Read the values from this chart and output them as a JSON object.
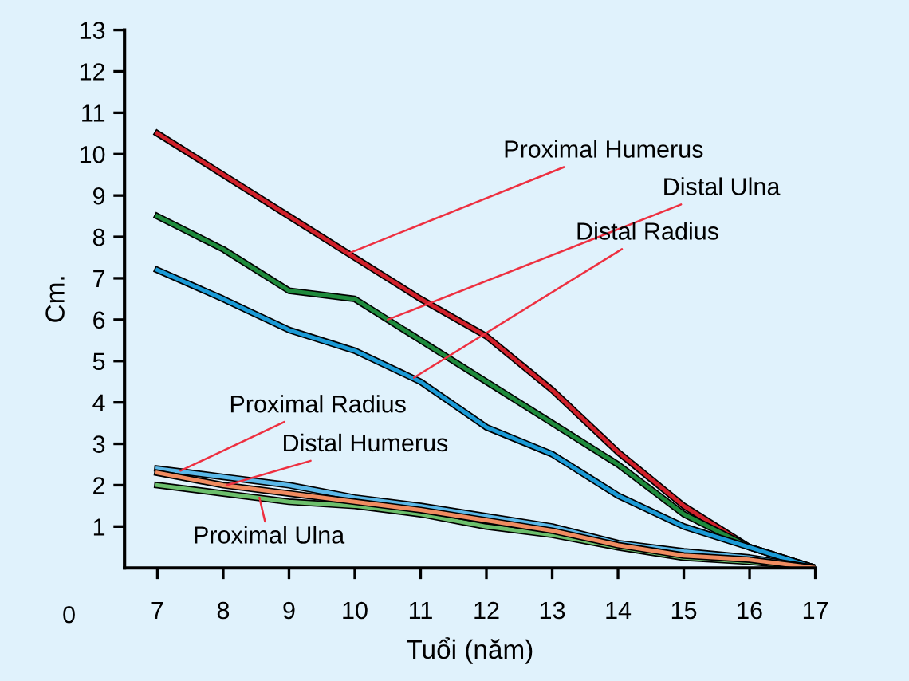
{
  "chart_data": {
    "type": "line",
    "xlabel": "Tuổi (năm)",
    "ylabel": "Cm.",
    "x": [
      7,
      8,
      9,
      10,
      11,
      12,
      13,
      14,
      15,
      16,
      17
    ],
    "xlim": [
      6.5,
      17
    ],
    "xticks": [
      7,
      8,
      9,
      10,
      11,
      12,
      13,
      14,
      15,
      16,
      17
    ],
    "ylim": [
      0,
      13
    ],
    "yticks": [
      1,
      2,
      3,
      4,
      5,
      6,
      7,
      8,
      9,
      10,
      11,
      12,
      13
    ],
    "grid": false,
    "legend": false,
    "marker": "none",
    "line_style": "solid",
    "series": [
      {
        "color": "#d0202a",
        "values": [
          10.5,
          9.5,
          8.5,
          7.5,
          6.5,
          5.6,
          4.3,
          2.8,
          1.5,
          0.5,
          0
        ]
      },
      {
        "color": "#1e8a3c",
        "values": [
          8.5,
          7.7,
          6.7,
          6.5,
          5.5,
          4.5,
          3.5,
          2.5,
          1.3,
          0.5,
          0
        ]
      },
      {
        "color": "#1a9ad6",
        "values": [
          7.2,
          6.5,
          5.75,
          5.25,
          4.5,
          3.4,
          2.75,
          1.75,
          1.0,
          0.5,
          0
        ]
      },
      {
        "color": "#5bb8e8",
        "values": [
          2.4,
          2.2,
          2.0,
          1.7,
          1.5,
          1.25,
          1.0,
          0.6,
          0.4,
          0.25,
          0
        ]
      },
      {
        "color": "#f08c60",
        "values": [
          2.3,
          2.0,
          1.8,
          1.6,
          1.4,
          1.15,
          0.9,
          0.55,
          0.3,
          0.2,
          0
        ]
      },
      {
        "color": "#6cbf6c",
        "values": [
          2.0,
          1.8,
          1.6,
          1.5,
          1.3,
          1.0,
          0.8,
          0.5,
          0.25,
          0.15,
          0
        ]
      }
    ],
    "annotations": [
      {
        "text": "Proximal Humerus",
        "x": 9.9,
        "y": 7.6
      },
      {
        "text": "Distal Ulna",
        "x": 10.5,
        "y": 6.0
      },
      {
        "text": "Distal Radius",
        "x": 10.9,
        "y": 4.6
      },
      {
        "text": "Proximal Radius",
        "x": 7.35,
        "y": 2.35
      },
      {
        "text": "Distal Humerus",
        "x": 8.05,
        "y": 2.0
      },
      {
        "text": "Proximal Ulna",
        "x": 8.55,
        "y": 1.7
      },
      "0"
    ]
  }
}
